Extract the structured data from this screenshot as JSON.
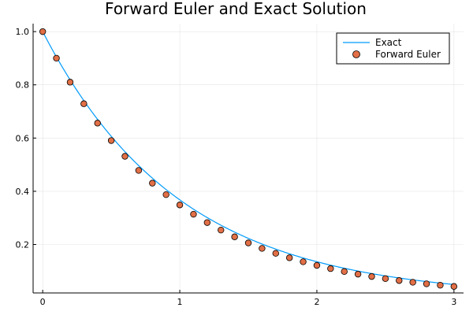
{
  "chart_data": {
    "type": "line",
    "title": "Forward Euler and Exact Solution",
    "xlabel": "",
    "ylabel": "",
    "xlim": [
      -0.07,
      3.07
    ],
    "ylim": [
      0.018,
      1.03
    ],
    "x_ticks": [
      0,
      1,
      2,
      3
    ],
    "x_tick_labels": [
      "0",
      "1",
      "2",
      "3"
    ],
    "y_ticks": [
      0.2,
      0.4,
      0.6,
      0.8,
      1.0
    ],
    "y_tick_labels": [
      "0.2",
      "0.4",
      "0.6",
      "0.8",
      "1.0"
    ],
    "grid": true,
    "legend_position": "top-right",
    "series": [
      {
        "name": "Exact",
        "kind": "line",
        "color": "#009AFA",
        "function": "exp(-t)",
        "x_range": [
          0,
          3
        ]
      },
      {
        "name": "Forward Euler",
        "kind": "scatter",
        "color": "#E26F46",
        "x": [
          0,
          0.1,
          0.2,
          0.3,
          0.4,
          0.5,
          0.6,
          0.7,
          0.8,
          0.9,
          1.0,
          1.1,
          1.2,
          1.3,
          1.4,
          1.5,
          1.6,
          1.7,
          1.8,
          1.9,
          2.0,
          2.1,
          2.2,
          2.3,
          2.4,
          2.5,
          2.6,
          2.7,
          2.8,
          2.9,
          3.0
        ],
        "y": [
          1.0,
          0.9,
          0.81,
          0.729,
          0.6561,
          0.5905,
          0.5314,
          0.4783,
          0.4305,
          0.3874,
          0.3487,
          0.3138,
          0.2824,
          0.2542,
          0.2288,
          0.2059,
          0.1853,
          0.1668,
          0.1501,
          0.1351,
          0.1216,
          0.1094,
          0.0985,
          0.0886,
          0.0798,
          0.0718,
          0.0646,
          0.0581,
          0.0523,
          0.0471,
          0.0424
        ]
      }
    ]
  }
}
